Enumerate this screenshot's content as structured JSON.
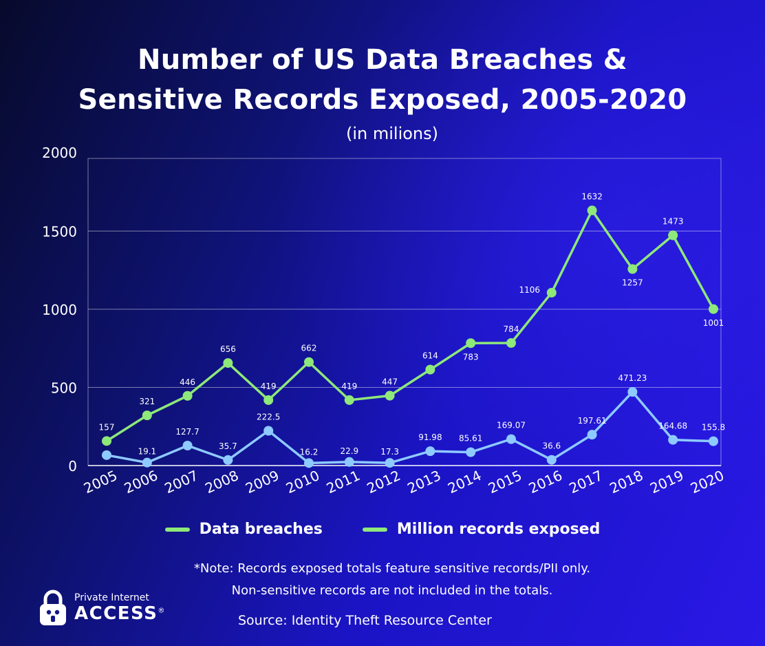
{
  "title_line1": "Number of US Data Breaches &",
  "title_line2": "Sensitive Records Exposed, 2005-2020",
  "subtitle": "(in milions)",
  "legend": [
    "Data breaches",
    "Million records exposed"
  ],
  "note_line1": "*Note: Records exposed totals feature sensitive records/PII only.",
  "note_line2": "Non-sensitive records are not included in the totals.",
  "source": "Source: Identity Theft Resource Center",
  "brand_line1": "Private Internet",
  "brand_line2": "ACCESS",
  "brand_mark": "®",
  "colors": {
    "breaches": "#8ee87a",
    "records": "#8ecaff",
    "grid": "rgba(255,255,255,0.45)"
  },
  "chart_data": {
    "type": "line",
    "title": "Number of US Data Breaches & Sensitive Records Exposed, 2005-2020",
    "subtitle": "(in milions)",
    "x": [
      "2005",
      "2006",
      "2007",
      "2008",
      "2009",
      "2010",
      "2011",
      "2012",
      "2013",
      "2014",
      "2015",
      "2016",
      "2017",
      "2018",
      "2019",
      "2020"
    ],
    "ylim": [
      0,
      2000
    ],
    "yticks": [
      "0",
      "500",
      "1000",
      "1500",
      "2000"
    ],
    "grid": true,
    "legend_position": "bottom",
    "series": [
      {
        "name": "Data breaches",
        "values": [
          157,
          321,
          446,
          656,
          419,
          662,
          419,
          447,
          614,
          783,
          784,
          1106,
          1632,
          1257,
          1473,
          1001
        ],
        "labels": [
          "157",
          "321",
          "446",
          "656",
          "419",
          "662",
          "419",
          "447",
          "614",
          "783",
          "784",
          "1106",
          "1632",
          "1257",
          "1473",
          "1001"
        ]
      },
      {
        "name": "Million records exposed",
        "values": [
          66.9,
          19.1,
          127.7,
          35.7,
          222.5,
          16.2,
          22.9,
          17.3,
          91.98,
          85.61,
          169.07,
          36.6,
          197.61,
          471.23,
          164.68,
          155.8
        ],
        "labels": [
          "",
          "19.1",
          "127.7",
          "35.7",
          "222.5",
          "16.2",
          "22.9",
          "17.3",
          "91.98",
          "85.61",
          "169.07",
          "36.6",
          "197.61",
          "471.23",
          "164.68",
          "155.8"
        ]
      }
    ]
  }
}
